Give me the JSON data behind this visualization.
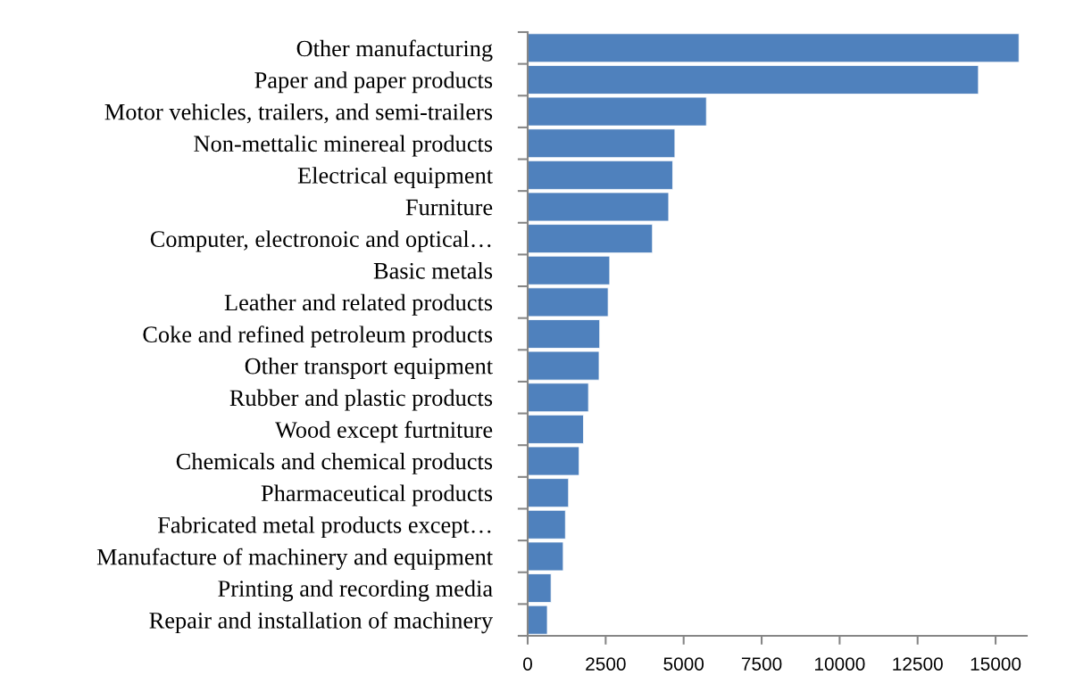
{
  "chart_data": {
    "type": "bar",
    "orientation": "horizontal",
    "categories": [
      "Other manufacturing",
      "Paper and paper products",
      "Motor vehicles, trailers, and semi-trailers",
      "Non-mettalic minereal products",
      "Electrical equipment",
      "Furniture",
      "Computer, electronoic and optical…",
      "Basic metals",
      "Leather and related products",
      "Coke and refined petroleum products",
      "Other transport equipment",
      "Rubber and plastic products",
      "Wood except furtniture",
      "Chemicals and chemical products",
      "Pharmaceutical products",
      "Fabricated metal products except…",
      "Manufacture of machinery and equipment",
      "Printing and recording media",
      "Repair and installation of machinery"
    ],
    "values": [
      15750,
      14450,
      5730,
      4720,
      4650,
      4520,
      4000,
      2630,
      2580,
      2310,
      2290,
      1950,
      1790,
      1650,
      1310,
      1210,
      1140,
      750,
      630
    ],
    "color": "#4f81bd",
    "xlim": [
      0,
      16000
    ],
    "xticks": [
      0,
      2500,
      5000,
      7500,
      10000,
      12500,
      15000
    ],
    "grid": false,
    "legend": false
  }
}
